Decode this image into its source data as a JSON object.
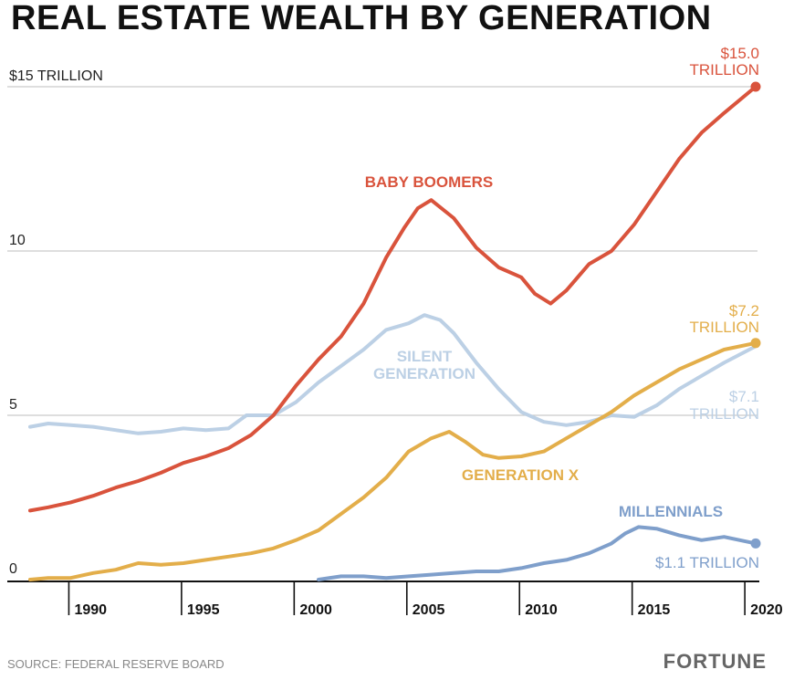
{
  "chart_data": {
    "type": "line",
    "title": "REAL ESTATE WEALTH BY GENERATION",
    "y_unit_label": "$15 TRILLION",
    "ylim": [
      0,
      15
    ],
    "xlim": [
      1988.2,
      2020.4
    ],
    "y_ticks": [
      {
        "value": 0,
        "label": "0"
      },
      {
        "value": 5,
        "label": "5"
      },
      {
        "value": 10,
        "label": "10"
      },
      {
        "value": 15,
        "label": "$15 TRILLION"
      }
    ],
    "x_ticks": [
      {
        "value": 1990,
        "label": "1990"
      },
      {
        "value": 1995,
        "label": "1995"
      },
      {
        "value": 2000,
        "label": "2000"
      },
      {
        "value": 2005,
        "label": "2005"
      },
      {
        "value": 2010,
        "label": "2010"
      },
      {
        "value": 2015,
        "label": "2015"
      },
      {
        "value": 2020,
        "label": "2020"
      }
    ],
    "grid": true,
    "series": [
      {
        "name": "BABY BOOMERS",
        "color": "#d9533c",
        "end_label": [
          "$15.0",
          "TRILLION"
        ],
        "x": [
          1988.2,
          1989,
          1990,
          1991,
          1992,
          1993,
          1994,
          1995,
          1996,
          1997,
          1998,
          1999,
          2000,
          2001,
          2002,
          2003,
          2004,
          2004.8,
          2005.4,
          2006,
          2007,
          2008,
          2009,
          2010,
          2010.6,
          2011.3,
          2012,
          2013,
          2014,
          2015,
          2016,
          2017,
          2018,
          2019,
          2020.4
        ],
        "y": [
          2.1,
          2.2,
          2.35,
          2.55,
          2.8,
          3.0,
          3.25,
          3.55,
          3.75,
          4.0,
          4.4,
          5.0,
          5.9,
          6.7,
          7.4,
          8.4,
          9.8,
          10.7,
          11.3,
          11.55,
          11.0,
          10.1,
          9.5,
          9.2,
          8.7,
          8.4,
          8.8,
          9.6,
          10.0,
          10.8,
          11.8,
          12.8,
          13.6,
          14.2,
          15.0
        ]
      },
      {
        "name": "SILENT GENERATION",
        "color": "#bcd0e5",
        "end_label": [
          "$7.1",
          "TRILLION"
        ],
        "x": [
          1988.2,
          1989,
          1990,
          1991,
          1992,
          1993,
          1994,
          1995,
          1996,
          1997,
          1997.8,
          1999,
          2000,
          2001,
          2002,
          2003,
          2004,
          2005,
          2005.7,
          2006.4,
          2007,
          2008,
          2009,
          2010,
          2011,
          2012,
          2013,
          2014,
          2015,
          2016,
          2017,
          2018,
          2019,
          2020.4
        ],
        "y": [
          4.65,
          4.75,
          4.7,
          4.65,
          4.55,
          4.45,
          4.5,
          4.6,
          4.55,
          4.6,
          5.0,
          5.0,
          5.4,
          6.0,
          6.5,
          7.0,
          7.6,
          7.8,
          8.05,
          7.9,
          7.5,
          6.6,
          5.8,
          5.1,
          4.8,
          4.7,
          4.8,
          5.0,
          4.95,
          5.3,
          5.8,
          6.2,
          6.6,
          7.1
        ]
      },
      {
        "name": "GENERATION X",
        "color": "#e3ae4a",
        "end_label": [
          "$7.2",
          "TRILLION"
        ],
        "x": [
          1988.2,
          1989,
          1990,
          1991,
          1992,
          1993,
          1994,
          1995,
          1996,
          1997,
          1998,
          1999,
          2000,
          2001,
          2002,
          2003,
          2004,
          2005,
          2006,
          2006.8,
          2007.5,
          2008.3,
          2009,
          2010,
          2011,
          2012,
          2013,
          2014,
          2015,
          2016,
          2017,
          2018,
          2019,
          2020.4
        ],
        "y": [
          0.0,
          0.05,
          0.05,
          0.2,
          0.3,
          0.5,
          0.45,
          0.5,
          0.6,
          0.7,
          0.8,
          0.95,
          1.2,
          1.5,
          2.0,
          2.5,
          3.1,
          3.9,
          4.3,
          4.5,
          4.2,
          3.8,
          3.7,
          3.75,
          3.9,
          4.3,
          4.7,
          5.1,
          5.6,
          6.0,
          6.4,
          6.7,
          7.0,
          7.2
        ]
      },
      {
        "name": "MILLENNIALS",
        "color": "#7f9fcb",
        "end_label": [
          "$1.1 TRILLION"
        ],
        "x": [
          2001,
          2002,
          2003,
          2004,
          2005,
          2006,
          2007,
          2008,
          2009,
          2010,
          2011,
          2012,
          2013,
          2014,
          2014.6,
          2015.2,
          2016,
          2017,
          2018,
          2019,
          2020.4
        ],
        "y": [
          0.0,
          0.1,
          0.1,
          0.05,
          0.1,
          0.15,
          0.2,
          0.25,
          0.25,
          0.35,
          0.5,
          0.6,
          0.8,
          1.1,
          1.4,
          1.6,
          1.55,
          1.35,
          1.2,
          1.3,
          1.1
        ]
      }
    ]
  },
  "source": "SOURCE: FEDERAL RESERVE BOARD",
  "brand": "FORTUNE"
}
